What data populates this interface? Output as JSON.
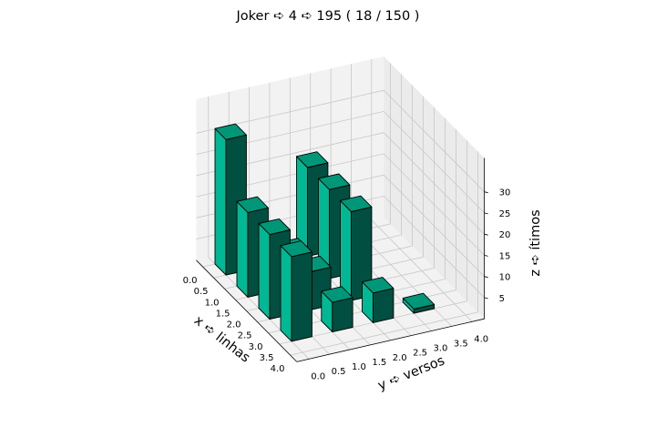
{
  "chart_data": {
    "type": "bar3d",
    "title": "Joker ➪ 4 ➪ 195 ( 18 / 150 )",
    "xlabel": "x ➪ linhas",
    "ylabel": "y ➪ versos",
    "zlabel": "z ➪ ítimos",
    "x_ticks": [
      "0.0",
      "0.5",
      "1.0",
      "1.5",
      "2.0",
      "2.5",
      "3.0",
      "3.5",
      "4.0"
    ],
    "y_ticks": [
      "0.0",
      "0.5",
      "1.0",
      "1.5",
      "2.0",
      "2.5",
      "3.0",
      "3.5",
      "4.0"
    ],
    "z_ticks": [
      "5",
      "10",
      "15",
      "20",
      "25",
      "30"
    ],
    "xlim": [
      0,
      4
    ],
    "ylim": [
      0,
      4
    ],
    "zlim": [
      0,
      33
    ],
    "bar_color": "#00b894",
    "bars": [
      {
        "x": 0,
        "y": 0,
        "z": 32
      },
      {
        "x": 1,
        "y": 0,
        "z": 20
      },
      {
        "x": 2,
        "y": 0,
        "z": 20
      },
      {
        "x": 3,
        "y": 0,
        "z": 20
      },
      {
        "x": 1,
        "y": 1,
        "z": 8
      },
      {
        "x": 2,
        "y": 1,
        "z": 9
      },
      {
        "x": 3,
        "y": 1,
        "z": 7
      },
      {
        "x": 0,
        "y": 2,
        "z": 21
      },
      {
        "x": 1,
        "y": 2,
        "z": 21
      },
      {
        "x": 2,
        "y": 2,
        "z": 21
      },
      {
        "x": 3,
        "y": 2,
        "z": 7
      },
      {
        "x": 3,
        "y": 3,
        "z": 1
      }
    ]
  }
}
